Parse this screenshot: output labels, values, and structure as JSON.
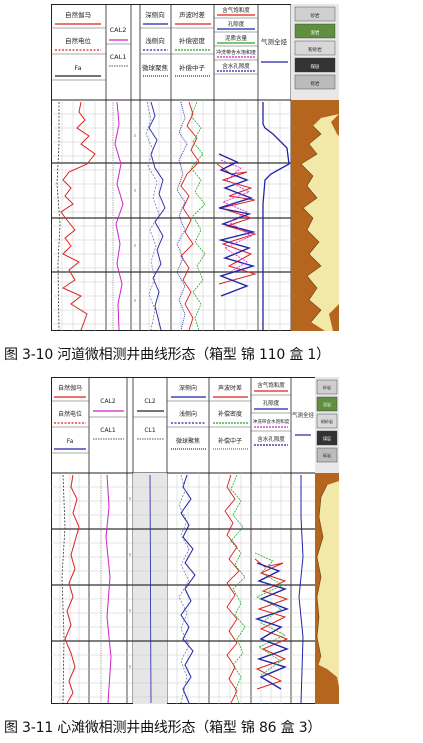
{
  "figures": [
    {
      "caption": "图 3-10  河道微相测井曲线形态（箱型  锦 110  盒 1）",
      "headers": {
        "track1": [
          "自然伽马",
          "自然电位",
          "Fa"
        ],
        "track2": [
          "CAL2",
          "CAL1"
        ],
        "track4": [
          "深侧向",
          "浅侧向",
          "微球聚焦"
        ],
        "track5": [
          "声波时差",
          "补偿密度",
          "补偿中子"
        ],
        "track6": [
          "含气饱和度",
          "孔隙度",
          "泥质含量",
          "冲洗带含水饱和度",
          "含水孔隙度"
        ],
        "track7": [
          "气测全烃"
        ]
      },
      "lith_legend": [
        "砂岩",
        "泥岩",
        "粉砂岩",
        "煤层",
        "砾岩"
      ]
    },
    {
      "caption": "图 3-11 心滩微相测井曲线形态（箱型  锦 86  盒 3）",
      "headers": {
        "track1": [
          "自然伽马",
          "自然电位",
          "Fa"
        ],
        "track2": [
          "CAL2",
          "CAL1"
        ],
        "track3": [
          "CL2",
          "CL1"
        ],
        "track4": [
          "深侧向",
          "浅侧向",
          "微球聚焦"
        ],
        "track5": [
          "声波时差",
          "补偿密度",
          "补偿中子"
        ],
        "track6": [
          "含气饱和度",
          "孔隙度",
          "冲洗带含水饱和度",
          "含水孔隙度"
        ],
        "track7": [
          "气测全烃"
        ]
      },
      "lith_legend": [
        "砂岩",
        "泥岩",
        "粉砂岩",
        "煤层",
        "砾岩"
      ]
    }
  ]
}
